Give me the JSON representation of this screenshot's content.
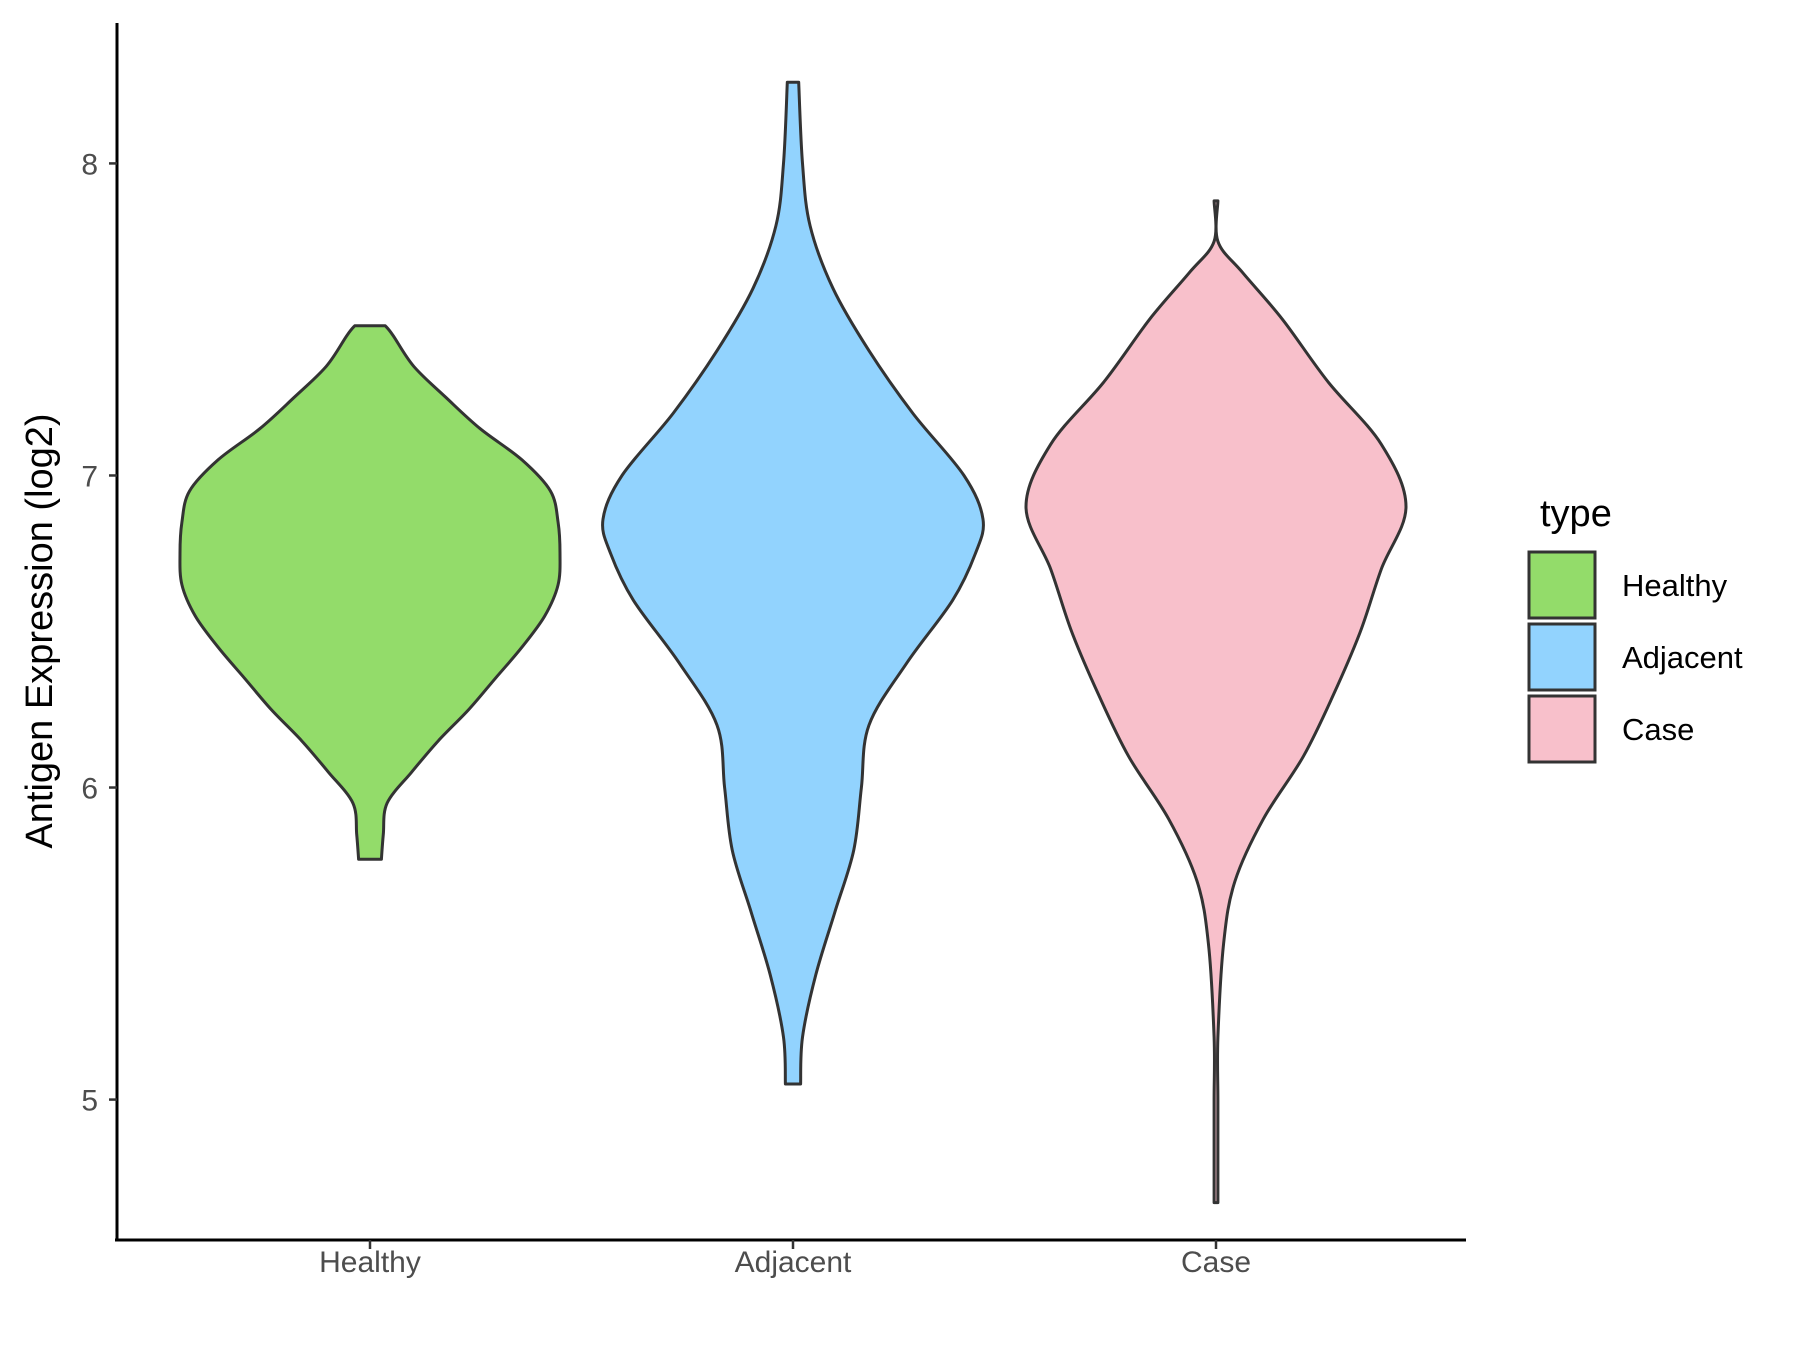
{
  "chart_data": {
    "type": "violin",
    "title": "",
    "xlabel": "",
    "ylabel": "Antigen Expression (log2)",
    "ylim": [
      4.55,
      8.45
    ],
    "yticks": [
      5,
      6,
      7,
      8
    ],
    "grid": false,
    "categories": [
      "Healthy",
      "Adjacent",
      "Case"
    ],
    "colors": {
      "Healthy": "#93dc6a",
      "Adjacent": "#92d3fe",
      "Case": "#f8c0cb"
    },
    "legend": {
      "title": "type",
      "position": "right",
      "entries": [
        "Healthy",
        "Adjacent",
        "Case"
      ]
    },
    "series": [
      {
        "name": "Healthy",
        "min": 5.77,
        "max": 7.48,
        "profile": [
          [
            5.77,
            0.06
          ],
          [
            5.85,
            0.07
          ],
          [
            5.95,
            0.09
          ],
          [
            6.05,
            0.22
          ],
          [
            6.15,
            0.36
          ],
          [
            6.25,
            0.52
          ],
          [
            6.35,
            0.66
          ],
          [
            6.45,
            0.8
          ],
          [
            6.55,
            0.92
          ],
          [
            6.65,
            0.99
          ],
          [
            6.75,
            1.0
          ],
          [
            6.85,
            0.99
          ],
          [
            6.95,
            0.95
          ],
          [
            7.05,
            0.8
          ],
          [
            7.15,
            0.58
          ],
          [
            7.25,
            0.4
          ],
          [
            7.35,
            0.23
          ],
          [
            7.45,
            0.12
          ],
          [
            7.48,
            0.08
          ]
        ]
      },
      {
        "name": "Adjacent",
        "min": 5.05,
        "max": 8.26,
        "profile": [
          [
            5.05,
            0.04
          ],
          [
            5.2,
            0.05
          ],
          [
            5.4,
            0.12
          ],
          [
            5.6,
            0.22
          ],
          [
            5.8,
            0.32
          ],
          [
            6.0,
            0.36
          ],
          [
            6.2,
            0.4
          ],
          [
            6.4,
            0.6
          ],
          [
            6.6,
            0.84
          ],
          [
            6.75,
            0.96
          ],
          [
            6.86,
            1.0
          ],
          [
            7.0,
            0.9
          ],
          [
            7.2,
            0.63
          ],
          [
            7.4,
            0.4
          ],
          [
            7.6,
            0.21
          ],
          [
            7.8,
            0.09
          ],
          [
            8.0,
            0.05
          ],
          [
            8.26,
            0.03
          ]
        ]
      },
      {
        "name": "Case",
        "min": 4.67,
        "max": 7.88,
        "profile": [
          [
            4.67,
            0.01
          ],
          [
            4.8,
            0.01
          ],
          [
            5.0,
            0.01
          ],
          [
            5.2,
            0.01
          ],
          [
            5.5,
            0.04
          ],
          [
            5.7,
            0.1
          ],
          [
            5.9,
            0.25
          ],
          [
            6.1,
            0.46
          ],
          [
            6.3,
            0.62
          ],
          [
            6.5,
            0.76
          ],
          [
            6.7,
            0.87
          ],
          [
            6.9,
            1.0
          ],
          [
            7.1,
            0.87
          ],
          [
            7.3,
            0.59
          ],
          [
            7.5,
            0.35
          ],
          [
            7.65,
            0.14
          ],
          [
            7.75,
            0.01
          ],
          [
            7.88,
            0.01
          ]
        ]
      }
    ]
  }
}
